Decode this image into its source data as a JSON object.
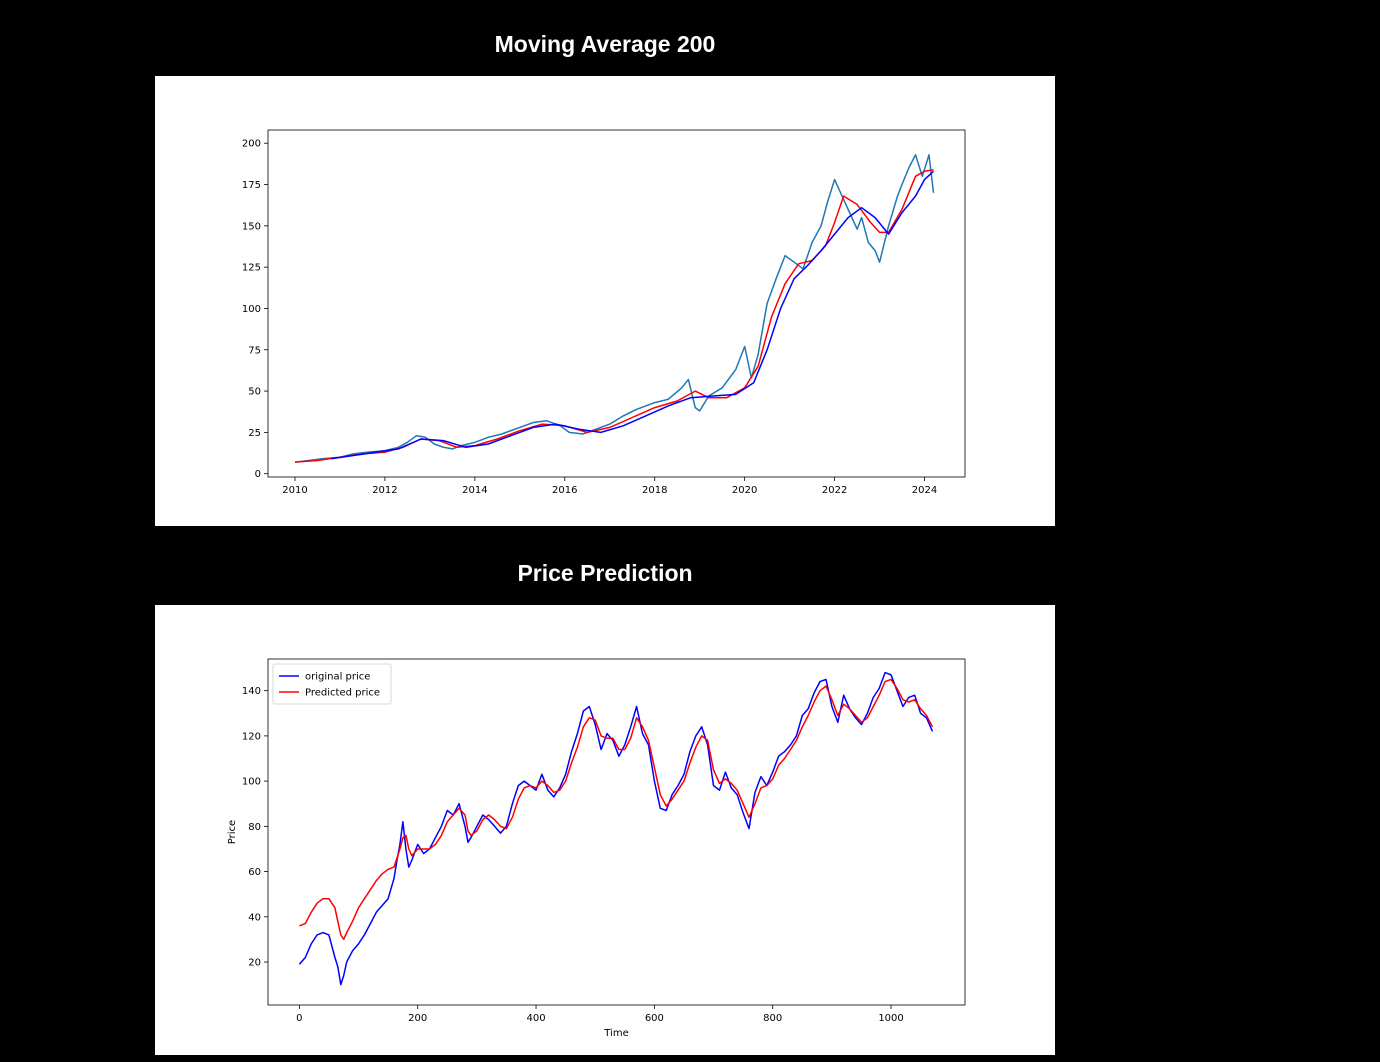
{
  "page": {
    "title1": "Moving Average 200",
    "title2": "Price Prediction"
  },
  "colors": {
    "page_bg": "#000000",
    "figure_bg": "#ffffff",
    "price": "#1f77b4",
    "ma_100": "#ff0000",
    "ma_200": "#0000ff",
    "original": "#0000ff",
    "predicted": "#ff0000"
  },
  "chart_data": [
    {
      "type": "line",
      "title": "Moving Average 200",
      "xlabel": "",
      "ylabel": "",
      "xlim": [
        2009.4,
        2024.9
      ],
      "ylim": [
        -2,
        208
      ],
      "xticks": [
        2010,
        2012,
        2014,
        2016,
        2018,
        2020,
        2022,
        2024
      ],
      "yticks": [
        0,
        25,
        50,
        75,
        100,
        125,
        150,
        175,
        200
      ],
      "grid": false,
      "legend": "none",
      "series": [
        {
          "color": "#1f77b4",
          "x": [
            2010.0,
            2010.3,
            2010.6,
            2011.0,
            2011.3,
            2011.6,
            2012.0,
            2012.3,
            2012.5,
            2012.7,
            2012.9,
            2013.1,
            2013.3,
            2013.5,
            2013.7,
            2014.0,
            2014.3,
            2014.6,
            2015.0,
            2015.3,
            2015.6,
            2015.9,
            2016.1,
            2016.4,
            2016.7,
            2017.0,
            2017.3,
            2017.6,
            2018.0,
            2018.3,
            2018.6,
            2018.75,
            2018.9,
            2019.0,
            2019.2,
            2019.5,
            2019.8,
            2020.0,
            2020.15,
            2020.3,
            2020.5,
            2020.7,
            2020.9,
            2021.1,
            2021.3,
            2021.5,
            2021.7,
            2021.85,
            2022.0,
            2022.1,
            2022.3,
            2022.5,
            2022.6,
            2022.75,
            2022.9,
            2023.0,
            2023.2,
            2023.4,
            2023.5,
            2023.65,
            2023.8,
            2023.95,
            2024.1,
            2024.2
          ],
          "y": [
            7,
            8,
            9,
            10,
            12,
            13,
            14,
            16,
            19,
            23,
            22,
            18,
            16,
            15,
            17,
            19,
            22,
            24,
            28,
            31,
            32,
            29,
            25,
            24,
            27,
            30,
            35,
            39,
            43,
            45,
            52,
            57,
            40,
            38,
            47,
            52,
            63,
            77,
            58,
            72,
            103,
            118,
            132,
            128,
            124,
            140,
            150,
            165,
            178,
            172,
            160,
            148,
            155,
            140,
            135,
            128,
            150,
            168,
            175,
            185,
            193,
            180,
            193,
            170
          ]
        },
        {
          "color": "#ff0000",
          "x": [
            2010.0,
            2010.5,
            2011.0,
            2011.5,
            2012.0,
            2012.4,
            2012.8,
            2013.2,
            2013.6,
            2014.0,
            2014.5,
            2015.0,
            2015.5,
            2016.0,
            2016.5,
            2017.0,
            2017.5,
            2018.0,
            2018.5,
            2018.9,
            2019.2,
            2019.6,
            2020.0,
            2020.3,
            2020.6,
            2020.9,
            2021.2,
            2021.5,
            2021.8,
            2022.0,
            2022.2,
            2022.5,
            2022.8,
            2023.0,
            2023.2,
            2023.5,
            2023.8,
            2024.0,
            2024.2
          ],
          "y": [
            7,
            8,
            10,
            12,
            13,
            16,
            21,
            20,
            16,
            17,
            21,
            26,
            30,
            29,
            25,
            28,
            34,
            40,
            44,
            50,
            46,
            46,
            52,
            65,
            95,
            115,
            127,
            129,
            138,
            152,
            168,
            163,
            152,
            146,
            146,
            160,
            180,
            183,
            184
          ]
        },
        {
          "color": "#0000ff",
          "x": [
            2010.8,
            2011.3,
            2011.8,
            2012.3,
            2012.8,
            2013.3,
            2013.8,
            2014.3,
            2014.8,
            2015.3,
            2015.8,
            2016.3,
            2016.8,
            2017.3,
            2017.8,
            2018.3,
            2018.8,
            2019.3,
            2019.8,
            2020.2,
            2020.5,
            2020.8,
            2021.1,
            2021.4,
            2021.7,
            2022.0,
            2022.3,
            2022.6,
            2022.9,
            2023.2,
            2023.5,
            2023.8,
            2024.0,
            2024.2
          ],
          "y": [
            9,
            11,
            13,
            15,
            21,
            20,
            16,
            18,
            23,
            28,
            30,
            27,
            25,
            29,
            35,
            41,
            46,
            47,
            48,
            55,
            75,
            100,
            118,
            126,
            135,
            145,
            155,
            161,
            155,
            145,
            158,
            168,
            178,
            183
          ]
        }
      ]
    },
    {
      "type": "line",
      "title": "Price Prediction",
      "xlabel": "Time",
      "ylabel": "Price",
      "xlim": [
        -53,
        1125
      ],
      "ylim": [
        1,
        154
      ],
      "xticks": [
        0,
        200,
        400,
        600,
        800,
        1000
      ],
      "yticks": [
        20,
        40,
        60,
        80,
        100,
        120,
        140
      ],
      "grid": false,
      "legend": "top-left",
      "series": [
        {
          "name": "original price",
          "color": "#0000ff",
          "x": [
            0,
            10,
            20,
            30,
            40,
            50,
            60,
            65,
            70,
            75,
            80,
            90,
            100,
            110,
            120,
            130,
            140,
            150,
            160,
            165,
            170,
            175,
            180,
            185,
            190,
            200,
            210,
            220,
            230,
            240,
            250,
            260,
            270,
            280,
            285,
            290,
            300,
            310,
            320,
            330,
            340,
            350,
            360,
            370,
            380,
            390,
            400,
            410,
            420,
            430,
            440,
            450,
            460,
            470,
            480,
            490,
            500,
            510,
            520,
            530,
            540,
            550,
            560,
            570,
            580,
            590,
            600,
            610,
            620,
            630,
            640,
            650,
            660,
            670,
            680,
            690,
            700,
            710,
            720,
            730,
            740,
            750,
            760,
            770,
            780,
            790,
            800,
            810,
            820,
            830,
            840,
            850,
            860,
            870,
            880,
            890,
            900,
            910,
            920,
            930,
            940,
            950,
            960,
            970,
            980,
            990,
            1000,
            1010,
            1020,
            1030,
            1040,
            1050,
            1060,
            1070
          ],
          "y": [
            19,
            22,
            28,
            32,
            33,
            32,
            22,
            18,
            10,
            14,
            20,
            25,
            28,
            32,
            37,
            42,
            45,
            48,
            57,
            65,
            72,
            82,
            70,
            62,
            65,
            72,
            68,
            70,
            75,
            80,
            87,
            85,
            90,
            80,
            73,
            75,
            80,
            85,
            83,
            80,
            77,
            80,
            90,
            98,
            100,
            98,
            96,
            103,
            96,
            93,
            97,
            103,
            113,
            121,
            131,
            133,
            125,
            114,
            121,
            118,
            111,
            116,
            124,
            133,
            121,
            116,
            100,
            88,
            87,
            94,
            98,
            103,
            113,
            120,
            124,
            116,
            98,
            96,
            104,
            97,
            94,
            86,
            79,
            95,
            102,
            98,
            104,
            111,
            113,
            116,
            120,
            129,
            132,
            139,
            144,
            145,
            133,
            126,
            138,
            132,
            128,
            125,
            130,
            137,
            141,
            148,
            147,
            140,
            133,
            137,
            138,
            130,
            128,
            122
          ]
        },
        {
          "name": "Predicted price",
          "color": "#ff0000",
          "x": [
            0,
            10,
            20,
            30,
            40,
            50,
            60,
            65,
            70,
            75,
            80,
            90,
            100,
            110,
            120,
            130,
            140,
            150,
            160,
            165,
            170,
            175,
            180,
            185,
            190,
            200,
            210,
            220,
            230,
            240,
            250,
            260,
            270,
            280,
            285,
            290,
            300,
            310,
            320,
            330,
            340,
            350,
            360,
            370,
            380,
            390,
            400,
            410,
            420,
            430,
            440,
            450,
            460,
            470,
            480,
            490,
            500,
            510,
            520,
            530,
            540,
            550,
            560,
            570,
            580,
            590,
            600,
            610,
            620,
            630,
            640,
            650,
            660,
            670,
            680,
            690,
            700,
            710,
            720,
            730,
            740,
            750,
            760,
            770,
            780,
            790,
            800,
            810,
            820,
            830,
            840,
            850,
            860,
            870,
            880,
            890,
            900,
            910,
            920,
            930,
            940,
            950,
            960,
            970,
            980,
            990,
            1000,
            1010,
            1020,
            1030,
            1040,
            1050,
            1060,
            1070
          ],
          "y": [
            36,
            37,
            42,
            46,
            48,
            48,
            44,
            38,
            32,
            30,
            33,
            38,
            44,
            48,
            52,
            56,
            59,
            61,
            62,
            66,
            70,
            75,
            76,
            70,
            67,
            70,
            70,
            70,
            72,
            76,
            82,
            85,
            88,
            85,
            78,
            76,
            78,
            83,
            85,
            83,
            80,
            79,
            84,
            92,
            97,
            98,
            97,
            100,
            98,
            95,
            96,
            100,
            108,
            115,
            124,
            128,
            127,
            120,
            119,
            119,
            114,
            114,
            119,
            128,
            124,
            118,
            106,
            94,
            89,
            92,
            96,
            100,
            108,
            115,
            120,
            118,
            105,
            99,
            101,
            99,
            96,
            90,
            84,
            90,
            97,
            98,
            101,
            107,
            110,
            114,
            118,
            124,
            129,
            135,
            140,
            142,
            136,
            129,
            134,
            132,
            129,
            126,
            128,
            133,
            138,
            144,
            145,
            141,
            136,
            135,
            136,
            132,
            129,
            124
          ]
        }
      ]
    }
  ]
}
